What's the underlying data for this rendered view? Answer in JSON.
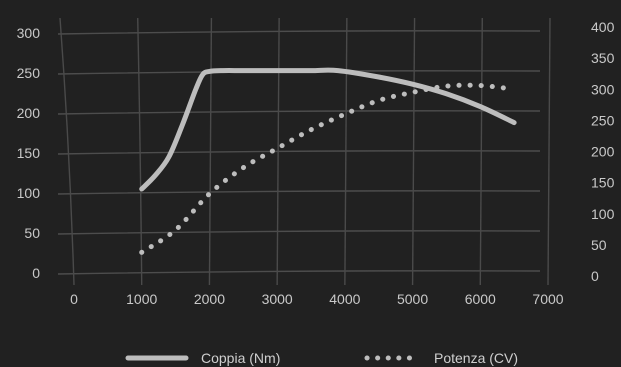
{
  "chart_data": {
    "type": "line",
    "title": "",
    "xlabel": "",
    "ylabel": "",
    "x_ticks": [
      "0",
      "1000",
      "2000",
      "3000",
      "4000",
      "5000",
      "6000",
      "7000"
    ],
    "y_left_ticks": [
      "0",
      "50",
      "100",
      "150",
      "200",
      "250",
      "300"
    ],
    "y_right_ticks": [
      "0",
      "50",
      "100",
      "150",
      "200",
      "250",
      "300",
      "350",
      "400"
    ],
    "xlim": [
      0,
      7000
    ],
    "ylim_left": [
      0,
      300
    ],
    "ylim_right": [
      0,
      400
    ],
    "grid": true,
    "legend_position": "bottom",
    "series": [
      {
        "name": "Coppia (Nm)",
        "axis": "left",
        "style": "solid",
        "color": "#bdbdbd",
        "x": [
          1000,
          1200,
          1400,
          1600,
          1800,
          1900,
          2000,
          2200,
          2500,
          3000,
          3500,
          3900,
          4500,
          5000,
          5500,
          6000,
          6500
        ],
        "y": [
          105,
          122,
          145,
          185,
          230,
          248,
          252,
          253,
          253,
          253,
          253,
          253,
          245,
          236,
          224,
          208,
          188
        ]
      },
      {
        "name": "Potenza (CV)",
        "axis": "right",
        "style": "dotted",
        "color": "#bdbdbd",
        "x": [
          1000,
          1500,
          2000,
          2500,
          3000,
          3500,
          4000,
          4500,
          5000,
          5500,
          6000,
          6500
        ],
        "y": [
          38,
          74,
          132,
          174,
          205,
          235,
          260,
          282,
          295,
          305,
          306,
          300
        ]
      }
    ]
  }
}
